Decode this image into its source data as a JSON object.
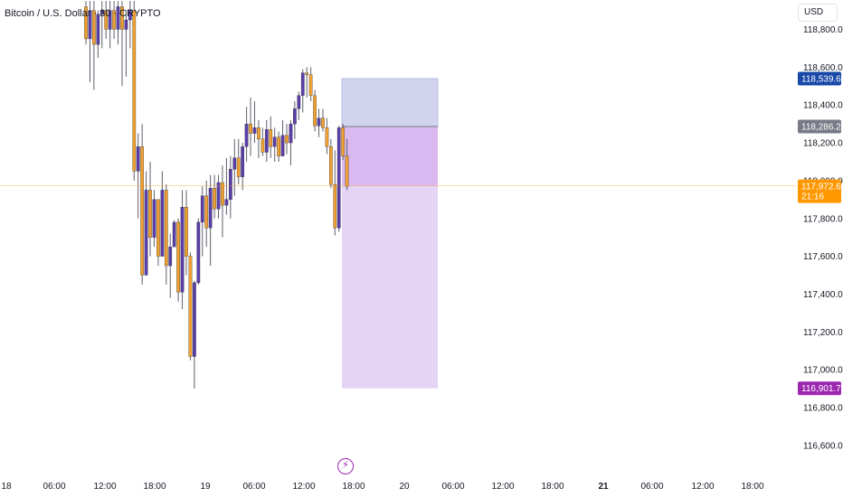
{
  "header": {
    "symbol_title": "Bitcoin / U.S. Dollar · 30 · CRYPTO",
    "currency": "USD"
  },
  "badges": {
    "target_price": {
      "text": "118,539.67",
      "color": "#1848a8"
    },
    "entry_price": {
      "text": "118,286.25",
      "color": "#787b86"
    },
    "last_price": {
      "text": "117,972.69",
      "countdown": "21:16",
      "color": "#ff9800"
    },
    "stop_price": {
      "text": "116,901.73",
      "color": "#9c27b0"
    }
  },
  "icons": {
    "lightning": "lightning-icon"
  },
  "chart_data": {
    "type": "candlestick",
    "title": "Bitcoin / U.S. Dollar · 30 · CRYPTO",
    "ylim": [
      116450,
      118950
    ],
    "y_ticks": [
      116600,
      116800,
      117000,
      117200,
      117400,
      117600,
      117800,
      118000,
      118200,
      118400,
      118600,
      118800
    ],
    "y_tick_labels": [
      "116,600.00",
      "116,800.00",
      "117,000.00",
      "117,200.00",
      "117,400.00",
      "117,600.00",
      "117,800.00",
      "118,000.00",
      "118,200.00",
      "118,400.00",
      "118,600.00",
      "118,800.00"
    ],
    "x_ticks": [
      "18",
      "06:00",
      "12:00",
      "18:00",
      "19",
      "06:00",
      "12:00",
      "18:00",
      "20",
      "06:00",
      "12:00",
      "18:00",
      "21",
      "06:00",
      "12:00",
      "18:00"
    ],
    "x_tick_bold": [
      false,
      false,
      false,
      false,
      false,
      false,
      false,
      false,
      false,
      false,
      false,
      false,
      true,
      false,
      false,
      false
    ],
    "last_price": 117972.69,
    "colors": {
      "up": "#5b3fa8",
      "down": "#f0a030",
      "wick": "#5d606b"
    },
    "candles": [
      [
        118920,
        118950,
        118720,
        118750
      ],
      [
        118750,
        118950,
        118520,
        118900
      ],
      [
        118900,
        118950,
        118480,
        118720
      ],
      [
        118720,
        118900,
        118650,
        118880
      ],
      [
        118880,
        118950,
        118700,
        118900
      ],
      [
        118900,
        118950,
        118750,
        118800
      ],
      [
        118800,
        118950,
        118700,
        118900
      ],
      [
        118900,
        118950,
        118750,
        118800
      ],
      [
        118800,
        118950,
        118720,
        118920
      ],
      [
        118920,
        118950,
        118500,
        118800
      ],
      [
        118800,
        118900,
        118550,
        118850
      ],
      [
        118850,
        118950,
        118700,
        118900
      ],
      [
        118900,
        118950,
        118000,
        118050
      ],
      [
        118050,
        118250,
        117800,
        118180
      ],
      [
        118180,
        118300,
        117450,
        117500
      ],
      [
        117500,
        118050,
        117500,
        117950
      ],
      [
        117950,
        118100,
        117600,
        117700
      ],
      [
        117700,
        117950,
        117650,
        117900
      ],
      [
        117900,
        117900,
        117550,
        117600
      ],
      [
        117600,
        118050,
        117600,
        117950
      ],
      [
        117950,
        117980,
        117450,
        117550
      ],
      [
        117550,
        117720,
        117380,
        117650
      ],
      [
        117650,
        117790,
        117650,
        117780
      ],
      [
        117780,
        117800,
        117360,
        117410
      ],
      [
        117410,
        117950,
        117320,
        117860
      ],
      [
        117860,
        117950,
        117500,
        117600
      ],
      [
        117600,
        117620,
        117050,
        117070
      ],
      [
        117070,
        117470,
        116900,
        117460
      ],
      [
        117460,
        117800,
        117450,
        117780
      ],
      [
        117780,
        117970,
        117600,
        117920
      ],
      [
        117920,
        118000,
        117650,
        117750
      ],
      [
        117750,
        118030,
        117550,
        117960
      ],
      [
        117960,
        118030,
        117800,
        117850
      ],
      [
        117850,
        118030,
        117800,
        117990
      ],
      [
        117990,
        118080,
        117700,
        117870
      ],
      [
        117870,
        118120,
        117820,
        117900
      ],
      [
        117900,
        118130,
        117800,
        118060
      ],
      [
        118060,
        118220,
        117920,
        118120
      ],
      [
        118120,
        118220,
        117980,
        118020
      ],
      [
        118020,
        118200,
        117950,
        118180
      ],
      [
        118180,
        118390,
        118100,
        118300
      ],
      [
        118300,
        118440,
        118130,
        118250
      ],
      [
        118250,
        118420,
        118200,
        118280
      ],
      [
        118280,
        118320,
        118120,
        118220
      ],
      [
        118220,
        118280,
        118130,
        118150
      ],
      [
        118150,
        118320,
        118100,
        118270
      ],
      [
        118270,
        118340,
        118120,
        118180
      ],
      [
        118180,
        118280,
        118100,
        118230
      ],
      [
        118230,
        118260,
        118100,
        118130
      ],
      [
        118130,
        118320,
        118130,
        118240
      ],
      [
        118240,
        118300,
        118140,
        118200
      ],
      [
        118200,
        118320,
        118080,
        118300
      ],
      [
        118300,
        118420,
        118220,
        118380
      ],
      [
        118380,
        118470,
        118320,
        118450
      ],
      [
        118450,
        118590,
        118360,
        118570
      ],
      [
        118570,
        118600,
        118440,
        118560
      ],
      [
        118560,
        118600,
        118420,
        118450
      ],
      [
        118450,
        118480,
        118260,
        118290
      ],
      [
        118290,
        118380,
        118230,
        118330
      ],
      [
        118330,
        118380,
        118260,
        118280
      ],
      [
        118280,
        118330,
        118140,
        118180
      ],
      [
        118180,
        118220,
        117960,
        117980
      ],
      [
        117980,
        118160,
        117710,
        117750
      ],
      [
        117750,
        118290,
        117730,
        118280
      ],
      [
        118280,
        118300,
        118110,
        118130
      ],
      [
        118130,
        118220,
        117950,
        117970
      ]
    ],
    "position": {
      "type": "long",
      "entry": 118286.25,
      "target": 118539.67,
      "stop": 116901.73,
      "profit_color": "#d1d4ec",
      "loss_color": "#e5d4f5",
      "overlap_color": "#d9b9ef"
    }
  }
}
